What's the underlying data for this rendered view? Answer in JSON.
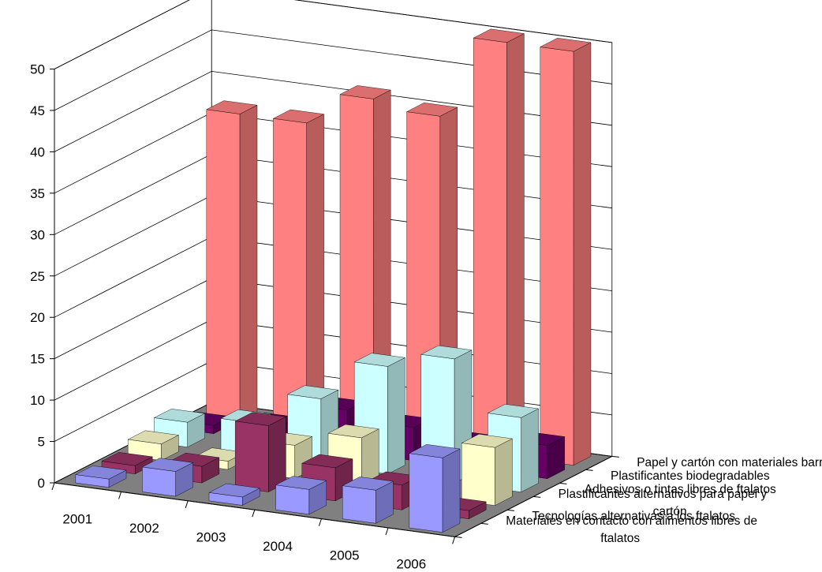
{
  "chart_data": {
    "type": "bar",
    "subtype": "3d-column",
    "title": "",
    "xlabel": "",
    "ylabel": "",
    "ylim": [
      0,
      50
    ],
    "yticks": [
      0,
      5,
      10,
      15,
      20,
      25,
      30,
      35,
      40,
      45,
      50
    ],
    "grid": true,
    "legend": "none",
    "categories": [
      "2001",
      "2002",
      "2003",
      "2004",
      "2005",
      "2006"
    ],
    "series": [
      {
        "name": "Materiales en contacto con alimentos libres de ftalatos",
        "values": [
          1,
          3,
          1,
          3,
          4,
          9
        ],
        "color": "#9999ff"
      },
      {
        "name": "Tecnologías alternativas a los ftalatos",
        "values": [
          1,
          2,
          8,
          4,
          3,
          1
        ],
        "color": "#993366"
      },
      {
        "name": "Plastificantes alternativos para papel y cartón",
        "values": [
          2,
          1,
          4,
          6,
          1,
          7
        ],
        "color": "#ffffcc"
      },
      {
        "name": "Adhesivos o tintas libres de ftalatos",
        "values": [
          3,
          4,
          8,
          13,
          15,
          9
        ],
        "color": "#ccffff"
      },
      {
        "name": "Plastificantes biodegradables",
        "values": [
          1,
          2,
          5,
          4,
          3,
          4
        ],
        "color": "#660066"
      },
      {
        "name": "Papel y cartón con materiales barrera",
        "values": [
          37,
          37,
          41,
          40,
          50,
          50
        ],
        "color": "#ff8080"
      }
    ]
  }
}
